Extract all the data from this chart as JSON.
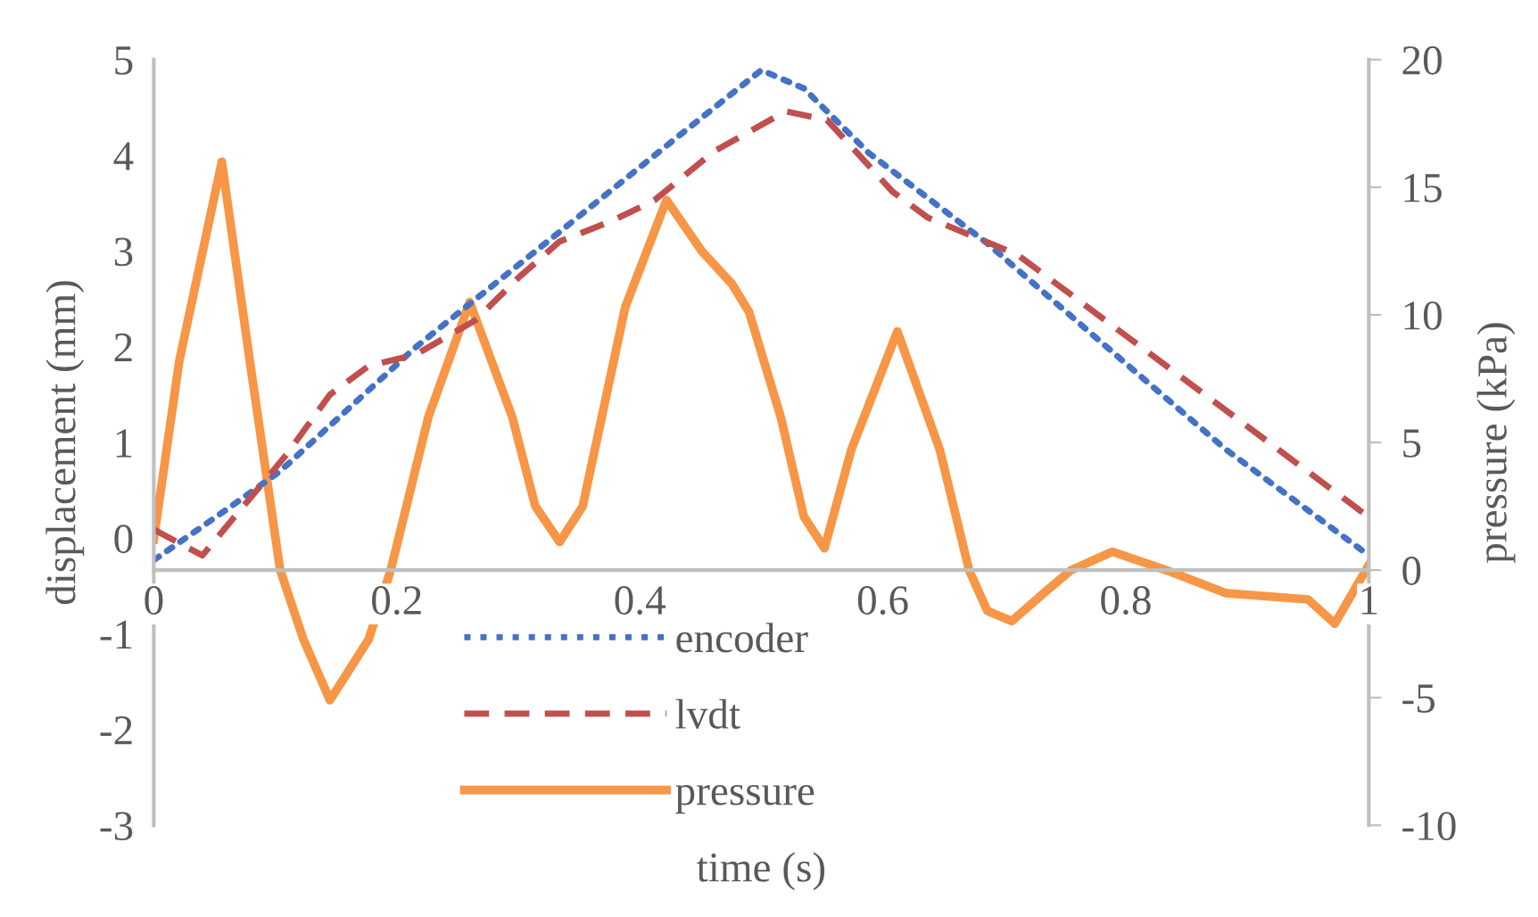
{
  "chart_data": {
    "type": "line",
    "xlabel": "time (s)",
    "ylabel": "displacement (mm)",
    "y2label": "pressure (kPa)",
    "xlim": [
      0,
      1
    ],
    "xticks": [
      0,
      0.2,
      0.4,
      0.6,
      0.8,
      1
    ],
    "ylim": [
      -3,
      5
    ],
    "yticks": [
      -3,
      -2,
      -1,
      0,
      1,
      2,
      3,
      4,
      5
    ],
    "y2lim": [
      -10,
      20
    ],
    "y2ticks": [
      -10,
      -5,
      0,
      5,
      10,
      15,
      20
    ],
    "grid": false,
    "legend": "bottom",
    "marker": "none",
    "series": [
      {
        "name": "encoder",
        "color": "#4472c4",
        "line_style": "dotted",
        "x": [
          0,
          0.06,
          0.104,
          0.216,
          0.334,
          0.422,
          0.5,
          0.535,
          0.588,
          0.686,
          0.784,
          0.882,
          1.0
        ],
        "values": [
          -0.23,
          0.3,
          0.7,
          2.0,
          3.2,
          4.1,
          4.89,
          4.7,
          4.03,
          3.08,
          2.0,
          0.93,
          -0.18
        ]
      },
      {
        "name": "lvdt",
        "color": "#c0504d",
        "line_style": "dashed",
        "x": [
          0,
          0.04,
          0.109,
          0.145,
          0.177,
          0.216,
          0.265,
          0.3,
          0.334,
          0.378,
          0.412,
          0.461,
          0.52,
          0.554,
          0.608,
          0.637,
          0.677,
          0.711,
          1.0
        ],
        "values": [
          0.09,
          -0.18,
          0.87,
          1.5,
          1.8,
          1.92,
          2.28,
          2.72,
          3.1,
          3.32,
          3.53,
          4.04,
          4.46,
          4.37,
          3.62,
          3.35,
          3.14,
          2.96,
          0.22
        ]
      },
      {
        "name": "pressure",
        "color": "#f79646",
        "line_style": "solid",
        "axis": "y2",
        "x": [
          0,
          0.021,
          0.056,
          0.079,
          0.104,
          0.123,
          0.145,
          0.177,
          0.195,
          0.226,
          0.26,
          0.295,
          0.314,
          0.334,
          0.353,
          0.388,
          0.422,
          0.451,
          0.476,
          0.49,
          0.516,
          0.535,
          0.552,
          0.574,
          0.612,
          0.647,
          0.671,
          0.686,
          0.706,
          0.735,
          0.755,
          0.789,
          0.833,
          0.882,
          0.95,
          0.972,
          1.0
        ],
        "values": [
          1.2,
          8.2,
          16.0,
          8.2,
          0,
          -2.7,
          -5.1,
          -2.7,
          0,
          6.0,
          10.5,
          6.0,
          2.5,
          1.1,
          2.5,
          10.3,
          14.5,
          12.5,
          11.2,
          10.1,
          6.0,
          2.1,
          0.85,
          4.7,
          9.35,
          4.7,
          0,
          -1.6,
          -2.0,
          -0.8,
          0,
          0.72,
          0,
          -0.9,
          -1.15,
          -2.1,
          0.2
        ]
      }
    ]
  }
}
